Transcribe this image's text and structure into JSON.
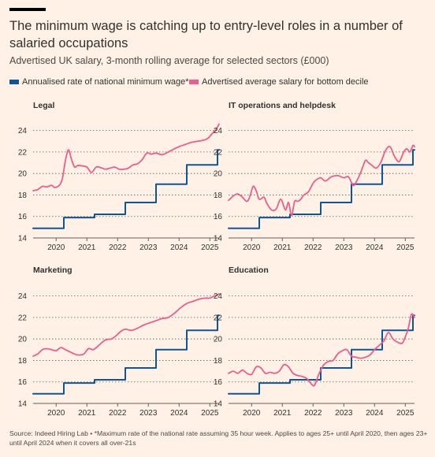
{
  "header": {
    "title": "The minimum wage is catching up to entry-level roles in a number of salaried occupations",
    "subtitle": "Advertised UK salary, 3-month rolling average for selected sectors (£000)"
  },
  "legend": [
    {
      "label": "Annualised rate of national minimum wage*",
      "color": "#0d5499"
    },
    {
      "label": "Advertised average salary for bottom decile",
      "color": "#eb5e8d"
    }
  ],
  "source": "Source: Indeed Hiring Lab • *Maximum rate of the national rate assuming 35 hour week. Applies to ages 25+ until April 2020, then ages 23+ until April 2024 when it covers all over-21s",
  "chart_data": [
    {
      "type": "line",
      "title": "Legal",
      "xlim": [
        2019.25,
        2025.3
      ],
      "ylim": [
        14,
        25
      ],
      "yticks": [
        14,
        16,
        18,
        20,
        22,
        24
      ],
      "xticks": [
        2020,
        2021,
        2022,
        2023,
        2024,
        2025
      ],
      "grid": "horizontal dotted",
      "series": [
        {
          "name": "Annualised rate of national minimum wage*",
          "color": "#0d5499",
          "step": true,
          "x": [
            2019.25,
            2020.25,
            2021.25,
            2022.25,
            2023.25,
            2024.25,
            2025.25,
            2025.3
          ],
          "y": [
            14.9,
            15.9,
            16.2,
            17.3,
            19.0,
            20.8,
            22.2,
            22.2
          ]
        },
        {
          "name": "Advertised average salary for bottom decile",
          "color": "#eb5e8d",
          "x": [
            2019.25,
            2019.4,
            2019.55,
            2019.7,
            2019.85,
            2019.95,
            2020.1,
            2020.2,
            2020.3,
            2020.4,
            2020.5,
            2020.6,
            2020.7,
            2020.85,
            2021.0,
            2021.15,
            2021.3,
            2021.45,
            2021.6,
            2021.75,
            2021.9,
            2022.05,
            2022.2,
            2022.35,
            2022.5,
            2022.65,
            2022.8,
            2022.95,
            2023.1,
            2023.25,
            2023.45,
            2023.65,
            2023.85,
            2024.0,
            2024.2,
            2024.4,
            2024.6,
            2024.8,
            2024.95,
            2025.1,
            2025.2,
            2025.3
          ],
          "y": [
            18.4,
            18.5,
            18.8,
            18.75,
            18.9,
            18.7,
            18.9,
            19.5,
            21.2,
            22.2,
            21.3,
            20.6,
            20.75,
            20.7,
            20.6,
            20.1,
            20.6,
            20.55,
            20.4,
            20.5,
            20.6,
            20.4,
            20.4,
            20.5,
            20.8,
            20.9,
            21.3,
            21.9,
            21.8,
            21.9,
            21.75,
            22.0,
            22.3,
            22.5,
            22.7,
            22.9,
            23.0,
            23.1,
            23.3,
            23.8,
            24.1,
            24.6
          ]
        }
      ]
    },
    {
      "type": "line",
      "title": "IT operations and helpdesk",
      "xlim": [
        2019.25,
        2025.3
      ],
      "ylim": [
        14,
        25
      ],
      "yticks": [
        14,
        16,
        18,
        20,
        22,
        24
      ],
      "xticks": [
        2020,
        2021,
        2022,
        2023,
        2024,
        2025
      ],
      "grid": "horizontal dotted",
      "series": [
        {
          "name": "Annualised rate of national minimum wage*",
          "color": "#0d5499",
          "step": true,
          "x": [
            2019.25,
            2020.25,
            2021.25,
            2022.25,
            2023.25,
            2024.25,
            2025.25,
            2025.3
          ],
          "y": [
            14.9,
            15.9,
            16.2,
            17.3,
            19.0,
            20.8,
            22.2,
            22.2
          ]
        },
        {
          "name": "Advertised average salary for bottom decile",
          "color": "#eb5e8d",
          "x": [
            2019.25,
            2019.4,
            2019.55,
            2019.7,
            2019.85,
            2019.95,
            2020.05,
            2020.15,
            2020.25,
            2020.4,
            2020.5,
            2020.65,
            2020.8,
            2020.95,
            2021.1,
            2021.2,
            2021.3,
            2021.4,
            2021.5,
            2021.6,
            2021.7,
            2021.85,
            2022.0,
            2022.1,
            2022.25,
            2022.4,
            2022.6,
            2022.8,
            2023.0,
            2023.15,
            2023.3,
            2023.4,
            2023.55,
            2023.7,
            2023.8,
            2023.9,
            2024.05,
            2024.2,
            2024.35,
            2024.5,
            2024.65,
            2024.8,
            2024.95,
            2025.05,
            2025.15,
            2025.25,
            2025.3
          ],
          "y": [
            17.5,
            17.9,
            18.1,
            17.8,
            17.4,
            17.9,
            18.8,
            18.4,
            17.6,
            17.8,
            17.2,
            16.6,
            16.7,
            17.6,
            16.6,
            17.3,
            16.1,
            17.4,
            17.4,
            17.6,
            18.0,
            18.3,
            19.1,
            19.4,
            19.6,
            19.3,
            19.7,
            19.8,
            19.6,
            19.7,
            18.9,
            19.2,
            20.1,
            21.2,
            21.0,
            20.8,
            20.5,
            21.0,
            22.1,
            22.5,
            21.6,
            21.1,
            22.0,
            22.3,
            22.0,
            22.6,
            22.5
          ]
        }
      ]
    },
    {
      "type": "line",
      "title": "Marketing",
      "xlim": [
        2019.25,
        2025.3
      ],
      "ylim": [
        14,
        25
      ],
      "yticks": [
        14,
        16,
        18,
        20,
        22,
        24
      ],
      "xticks": [
        2020,
        2021,
        2022,
        2023,
        2024,
        2025
      ],
      "grid": "horizontal dotted",
      "series": [
        {
          "name": "Annualised rate of national minimum wage*",
          "color": "#0d5499",
          "step": true,
          "x": [
            2019.25,
            2020.25,
            2021.25,
            2022.25,
            2023.25,
            2024.25,
            2025.25,
            2025.3
          ],
          "y": [
            14.9,
            15.9,
            16.2,
            17.3,
            19.0,
            20.8,
            22.2,
            22.2
          ]
        },
        {
          "name": "Advertised average salary for bottom decile",
          "color": "#eb5e8d",
          "x": [
            2019.25,
            2019.4,
            2019.55,
            2019.7,
            2019.85,
            2020.0,
            2020.15,
            2020.3,
            2020.45,
            2020.6,
            2020.75,
            2020.9,
            2021.05,
            2021.2,
            2021.35,
            2021.5,
            2021.65,
            2021.8,
            2021.95,
            2022.1,
            2022.25,
            2022.45,
            2022.65,
            2022.85,
            2023.05,
            2023.25,
            2023.45,
            2023.65,
            2023.85,
            2024.05,
            2024.25,
            2024.45,
            2024.65,
            2024.85,
            2025.0,
            2025.15,
            2025.25,
            2025.3
          ],
          "y": [
            18.4,
            18.6,
            19.0,
            19.1,
            19.0,
            18.9,
            19.2,
            19.0,
            18.8,
            18.6,
            18.5,
            18.6,
            19.1,
            19.0,
            19.3,
            19.7,
            19.95,
            20.0,
            20.3,
            20.7,
            20.9,
            20.8,
            21.0,
            21.3,
            21.5,
            21.7,
            21.9,
            22.0,
            22.4,
            22.9,
            23.3,
            23.5,
            23.7,
            23.8,
            23.8,
            24.0,
            24.1,
            24.2
          ]
        }
      ]
    },
    {
      "type": "line",
      "title": "Education",
      "xlim": [
        2019.25,
        2025.3
      ],
      "ylim": [
        14,
        25
      ],
      "yticks": [
        14,
        16,
        18,
        20,
        22,
        24
      ],
      "xticks": [
        2020,
        2021,
        2022,
        2023,
        2024,
        2025
      ],
      "grid": "horizontal dotted",
      "series": [
        {
          "name": "Annualised rate of national minimum wage*",
          "color": "#0d5499",
          "step": true,
          "x": [
            2019.25,
            2020.25,
            2021.25,
            2022.25,
            2023.25,
            2024.25,
            2025.25,
            2025.3
          ],
          "y": [
            14.9,
            15.9,
            16.2,
            17.3,
            19.0,
            20.8,
            22.2,
            22.2
          ]
        },
        {
          "name": "Advertised average salary for bottom decile",
          "color": "#eb5e8d",
          "x": [
            2019.25,
            2019.4,
            2019.55,
            2019.7,
            2019.85,
            2020.0,
            2020.15,
            2020.3,
            2020.45,
            2020.6,
            2020.75,
            2020.9,
            2021.05,
            2021.2,
            2021.35,
            2021.5,
            2021.65,
            2021.8,
            2021.95,
            2022.05,
            2022.2,
            2022.35,
            2022.5,
            2022.65,
            2022.8,
            2022.95,
            2023.1,
            2023.25,
            2023.4,
            2023.55,
            2023.7,
            2023.85,
            2024.0,
            2024.15,
            2024.3,
            2024.45,
            2024.6,
            2024.75,
            2024.9,
            2025.0,
            2025.1,
            2025.2,
            2025.3
          ],
          "y": [
            16.8,
            17.0,
            16.8,
            17.1,
            16.8,
            16.7,
            17.4,
            17.3,
            16.8,
            16.9,
            16.8,
            17.0,
            17.6,
            17.4,
            16.8,
            16.6,
            16.5,
            16.3,
            15.8,
            15.7,
            16.8,
            17.6,
            17.9,
            18.0,
            18.6,
            18.9,
            19.0,
            18.4,
            18.3,
            18.2,
            18.3,
            18.5,
            19.0,
            19.4,
            19.8,
            20.6,
            20.0,
            19.7,
            19.6,
            20.2,
            21.0,
            22.3,
            22.0
          ]
        }
      ]
    }
  ]
}
